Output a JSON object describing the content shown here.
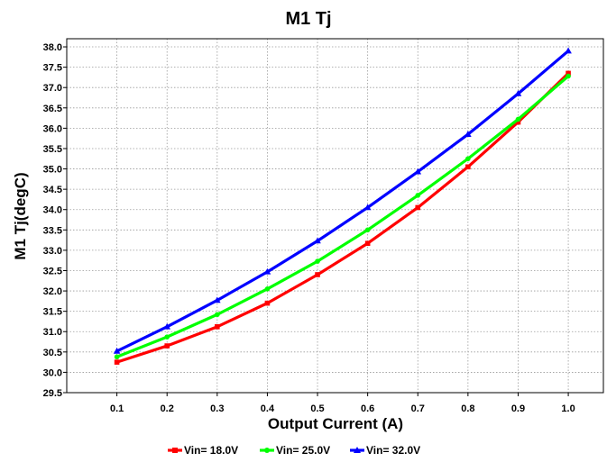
{
  "chart_data": {
    "type": "line",
    "title": "M1 Tj",
    "xlabel": "Output Current (A)",
    "ylabel": "M1 Tj(degC)",
    "x": [
      0.1,
      0.2,
      0.3,
      0.4,
      0.5,
      0.6,
      0.7,
      0.8,
      0.9,
      1.0
    ],
    "xticks": [
      "0.1",
      "0.2",
      "0.3",
      "0.4",
      "0.5",
      "0.6",
      "0.7",
      "0.8",
      "0.9",
      "1.0"
    ],
    "xlim": [
      0.0,
      1.07
    ],
    "ylim": [
      29.5,
      38.2
    ],
    "yticks": [
      "29.5",
      "30.0",
      "30.5",
      "31.0",
      "31.5",
      "32.0",
      "32.5",
      "33.0",
      "33.5",
      "34.0",
      "34.5",
      "35.0",
      "35.5",
      "36.0",
      "36.5",
      "37.0",
      "37.5",
      "38.0"
    ],
    "grid": true,
    "legend_position": "bottom",
    "series": [
      {
        "name": "Vin= 18.0V",
        "color": "#ff0000",
        "marker": "square",
        "values": [
          30.25,
          30.65,
          31.12,
          31.7,
          32.4,
          33.17,
          34.05,
          35.05,
          36.15,
          37.35
        ]
      },
      {
        "name": "Vin= 25.0V",
        "color": "#00ff00",
        "marker": "circle",
        "values": [
          30.38,
          30.87,
          31.42,
          32.05,
          32.73,
          33.5,
          34.35,
          35.25,
          36.22,
          37.28
        ]
      },
      {
        "name": "Vin= 32.0V",
        "color": "#0000ff",
        "marker": "triangle",
        "values": [
          30.52,
          31.12,
          31.77,
          32.47,
          33.23,
          34.05,
          34.93,
          35.85,
          36.85,
          37.9
        ]
      }
    ]
  }
}
